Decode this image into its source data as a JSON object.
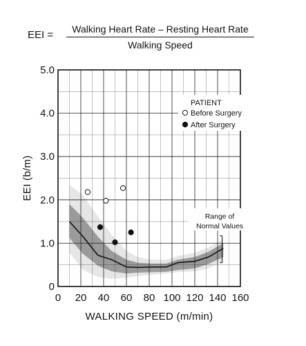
{
  "formula": {
    "lhs": "EEI =",
    "numerator": "Walking Heart Rate – Resting Heart Rate",
    "denominator": "Walking Speed"
  },
  "chart_data": {
    "type": "scatter",
    "title": "",
    "xlabel": "WALKING SPEED (m/min)",
    "ylabel": "EEI (b/m)",
    "xlim": [
      0,
      160
    ],
    "ylim": [
      0,
      5
    ],
    "x_ticks": [
      0,
      20,
      40,
      60,
      80,
      100,
      120,
      140,
      160
    ],
    "y_ticks": [
      0,
      1.0,
      2.0,
      3.0,
      4.0,
      5.0
    ],
    "x_tick_labels": [
      "0",
      "20",
      "40",
      "60",
      "80",
      "100",
      "120",
      "140",
      "160"
    ],
    "y_tick_labels": [
      "0",
      "1.0",
      "2.0",
      "3.0",
      "4.0",
      "5.0"
    ],
    "grid": true,
    "reference_line_y": 0.5,
    "legend": {
      "title": "PATIENT",
      "placement": "top-right",
      "entries": [
        {
          "label": "Before Surgery",
          "marker": "open-circle"
        },
        {
          "label": "After Surgery",
          "marker": "filled-circle"
        }
      ]
    },
    "series": [
      {
        "name": "Before Surgery",
        "marker": "open-circle",
        "x": [
          26,
          42,
          57
        ],
        "y": [
          2.18,
          1.98,
          2.27
        ]
      },
      {
        "name": "After Surgery",
        "marker": "filled-circle",
        "x": [
          37,
          50,
          64
        ],
        "y": [
          1.37,
          1.02,
          1.25
        ]
      }
    ],
    "normal_range": {
      "label_lines": [
        "Range of",
        "Normal Values"
      ],
      "x": [
        10,
        22,
        35,
        47,
        60,
        70,
        82,
        95,
        105,
        120,
        132,
        145
      ],
      "median": [
        1.5,
        1.15,
        0.72,
        0.62,
        0.45,
        0.44,
        0.45,
        0.45,
        0.55,
        0.58,
        0.68,
        0.88
      ],
      "inner_upper": [
        1.9,
        1.58,
        1.15,
        0.82,
        0.62,
        0.55,
        0.53,
        0.53,
        0.62,
        0.68,
        0.8,
        1.0
      ],
      "inner_lower": [
        1.12,
        0.75,
        0.48,
        0.35,
        0.3,
        0.32,
        0.33,
        0.34,
        0.38,
        0.42,
        0.52,
        0.68
      ],
      "outer_upper": [
        2.35,
        2.1,
        1.62,
        1.2,
        0.82,
        0.68,
        0.62,
        0.62,
        0.7,
        0.78,
        0.9,
        1.1
      ],
      "outer_lower": [
        0.78,
        0.38,
        0.22,
        0.18,
        0.2,
        0.24,
        0.27,
        0.3,
        0.33,
        0.35,
        0.42,
        0.58
      ]
    },
    "colors": {
      "outer_band": "#e6e6e6",
      "inner_band": "#9a9a9a",
      "median_line": "#111111",
      "grid": "#222222"
    }
  }
}
